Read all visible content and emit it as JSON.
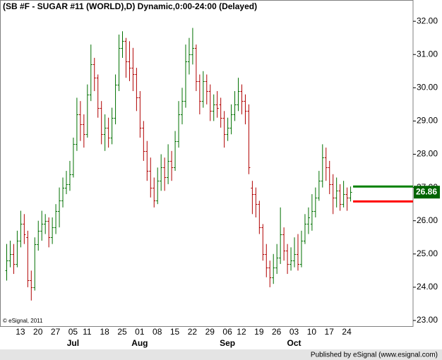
{
  "chart_data": {
    "type": "ohlc",
    "title": "(SB #F - SUGAR #11 (WORLD),D) Dynamic,0:00-24:00 (Delayed)",
    "copyright": "© eSignal, 2011",
    "footer": "Published by eSignal (www.esignal.com)",
    "categories": [
      null,
      null,
      null,
      null,
      "13",
      null,
      null,
      null,
      null,
      "20",
      null,
      null,
      null,
      null,
      "27",
      null,
      null,
      null,
      null,
      "05",
      null,
      null,
      null,
      "11",
      null,
      null,
      null,
      null,
      "18",
      null,
      null,
      null,
      null,
      "25",
      null,
      null,
      null,
      null,
      "01",
      null,
      null,
      null,
      null,
      "08",
      null,
      null,
      null,
      null,
      "15",
      null,
      null,
      null,
      null,
      "22",
      null,
      null,
      null,
      null,
      "29",
      null,
      null,
      null,
      null,
      "06",
      null,
      null,
      null,
      "12",
      null,
      null,
      null,
      null,
      "19",
      null,
      null,
      null,
      null,
      "26",
      null,
      null,
      null,
      null,
      "03",
      null,
      null,
      null,
      null,
      "10",
      null,
      null,
      null,
      null,
      "17",
      null,
      null,
      null,
      null,
      "24",
      null
    ],
    "months": [
      null,
      null,
      null,
      null,
      null,
      null,
      null,
      null,
      null,
      null,
      null,
      null,
      null,
      null,
      null,
      null,
      null,
      null,
      null,
      "Jul",
      null,
      null,
      null,
      null,
      null,
      null,
      null,
      null,
      null,
      null,
      null,
      null,
      null,
      null,
      null,
      null,
      null,
      null,
      "Aug",
      null,
      null,
      null,
      null,
      null,
      null,
      null,
      null,
      null,
      null,
      null,
      null,
      null,
      null,
      null,
      null,
      null,
      null,
      null,
      null,
      null,
      null,
      null,
      null,
      "Sep",
      null,
      null,
      null,
      null,
      null,
      null,
      null,
      null,
      null,
      null,
      null,
      null,
      null,
      null,
      null,
      null,
      null,
      null,
      "Oct",
      null,
      null,
      null,
      null,
      null,
      null,
      null,
      null,
      null,
      null,
      null,
      null,
      null,
      null,
      null,
      null
    ],
    "series": [
      {
        "up_color": "#007000",
        "down_color": "#b00000",
        "open": [
          24.5,
          24.8,
          25.0,
          24.7,
          25.4,
          25.9,
          25.5,
          24.2,
          24.0,
          25.3,
          25.7,
          25.9,
          26.0,
          25.5,
          25.8,
          26.3,
          26.6,
          27.0,
          27.1,
          27.4,
          28.3,
          29.2,
          28.9,
          28.6,
          29.8,
          30.7,
          30.3,
          29.4,
          28.6,
          28.8,
          28.5,
          29.1,
          30.1,
          31.2,
          31.4,
          30.8,
          30.6,
          30.4,
          29.7,
          28.8,
          28.1,
          27.5,
          27.0,
          26.6,
          27.2,
          27.6,
          27.3,
          27.8,
          27.6,
          28.4,
          29.2,
          29.6,
          30.8,
          31.0,
          31.2,
          30.2,
          29.6,
          30.2,
          29.9,
          29.3,
          29.5,
          29.5,
          29.1,
          28.6,
          28.8,
          29.2,
          29.5,
          29.9,
          29.6,
          29.3,
          27.0,
          26.8,
          26.5,
          25.8,
          25.0,
          24.6,
          24.3,
          24.6,
          24.9,
          25.6,
          25.1,
          24.7,
          24.8,
          25.0,
          24.7,
          25.4,
          25.9,
          25.9,
          26.3,
          26.7,
          27.2,
          27.9,
          27.6,
          27.1,
          26.7,
          26.9,
          26.5,
          26.8,
          26.7
        ],
        "high": [
          25.3,
          25.4,
          25.3,
          25.7,
          26.3,
          26.2,
          25.7,
          24.5,
          25.5,
          26.0,
          26.3,
          26.2,
          26.1,
          26.1,
          26.5,
          27.0,
          27.3,
          27.5,
          27.8,
          28.5,
          29.7,
          29.6,
          29.2,
          30.1,
          31.3,
          30.9,
          30.4,
          29.6,
          29.2,
          29.1,
          29.4,
          30.4,
          31.6,
          31.7,
          31.5,
          31.4,
          31.2,
          30.6,
          29.9,
          29.0,
          28.4,
          27.9,
          27.3,
          27.6,
          28.0,
          27.9,
          28.3,
          28.1,
          28.7,
          29.6,
          30.0,
          31.3,
          31.5,
          31.8,
          31.3,
          30.4,
          30.5,
          30.4,
          30.1,
          29.8,
          29.9,
          29.7,
          29.3,
          29.1,
          29.5,
          29.9,
          30.3,
          30.1,
          29.8,
          29.5,
          27.2,
          27.0,
          26.6,
          25.9,
          25.3,
          24.8,
          25.0,
          25.3,
          26.4,
          25.8,
          25.3,
          25.2,
          25.5,
          25.6,
          25.7,
          26.2,
          26.4,
          26.8,
          27.0,
          27.5,
          28.3,
          28.2,
          27.8,
          27.4,
          27.3,
          27.1,
          27.2,
          27.0,
          27.03
        ],
        "low": [
          24.2,
          24.6,
          24.4,
          24.6,
          25.2,
          25.3,
          24.0,
          23.6,
          23.9,
          25.1,
          25.4,
          25.6,
          25.2,
          25.3,
          25.6,
          25.8,
          26.4,
          26.8,
          26.9,
          27.3,
          28.1,
          28.4,
          28.2,
          28.5,
          29.6,
          29.9,
          29.1,
          28.3,
          28.1,
          28.2,
          28.3,
          28.9,
          29.9,
          30.9,
          30.3,
          30.2,
          29.9,
          29.3,
          28.5,
          27.8,
          27.2,
          26.7,
          26.4,
          26.5,
          26.9,
          26.9,
          27.1,
          27.2,
          27.5,
          28.2,
          28.9,
          29.4,
          30.4,
          30.7,
          29.9,
          29.2,
          29.4,
          29.5,
          29.0,
          29.0,
          29.1,
          28.8,
          28.2,
          28.4,
          28.6,
          29.0,
          29.3,
          29.2,
          28.9,
          27.4,
          26.2,
          26.1,
          25.6,
          24.8,
          24.3,
          24.0,
          24.1,
          24.4,
          24.7,
          24.8,
          24.4,
          24.5,
          24.6,
          24.5,
          24.6,
          25.3,
          25.6,
          25.7,
          26.1,
          26.6,
          27.0,
          27.2,
          26.8,
          26.2,
          26.4,
          26.3,
          26.4,
          26.3,
          26.58
        ],
        "close": [
          24.8,
          25.0,
          24.7,
          25.4,
          25.9,
          25.6,
          24.2,
          24.0,
          25.3,
          25.7,
          25.9,
          26.0,
          25.5,
          25.8,
          26.3,
          26.6,
          27.0,
          27.1,
          27.4,
          28.3,
          29.2,
          28.9,
          28.6,
          29.8,
          30.7,
          30.3,
          29.4,
          28.6,
          28.8,
          28.5,
          29.1,
          30.1,
          31.2,
          31.4,
          30.8,
          30.6,
          30.4,
          29.7,
          28.8,
          28.1,
          27.5,
          27.0,
          26.6,
          27.2,
          27.6,
          27.3,
          27.8,
          27.6,
          28.4,
          29.2,
          29.6,
          30.8,
          31.0,
          31.2,
          30.2,
          29.6,
          30.2,
          29.9,
          29.3,
          29.5,
          29.4,
          29.1,
          28.6,
          28.8,
          29.2,
          29.5,
          29.9,
          29.6,
          29.3,
          27.6,
          26.8,
          26.5,
          25.8,
          25.0,
          24.6,
          24.3,
          24.6,
          24.9,
          25.6,
          25.1,
          24.7,
          24.8,
          25.0,
          24.7,
          25.4,
          25.9,
          26.1,
          26.3,
          26.7,
          27.2,
          27.9,
          27.6,
          27.1,
          26.7,
          26.9,
          26.5,
          26.8,
          26.7,
          26.86
        ]
      }
    ],
    "ylim": [
      22.83,
      32.64
    ],
    "yticks": [
      {
        "value": 23,
        "label": "23.00"
      },
      {
        "value": 24,
        "label": "24.00"
      },
      {
        "value": 25,
        "label": "25.00"
      },
      {
        "value": 26,
        "label": "26.00"
      },
      {
        "value": 27,
        "label": "27.00"
      },
      {
        "value": 28,
        "label": "28.00"
      },
      {
        "value": 29,
        "label": "29.00"
      },
      {
        "value": 30,
        "label": "30.00"
      },
      {
        "value": 31,
        "label": "31.00"
      },
      {
        "value": 32,
        "label": "32.00"
      }
    ],
    "levels": [
      {
        "value": 27.03,
        "color": "#008000"
      },
      {
        "value": 26.58,
        "color": "#ff0000"
      }
    ],
    "last_price": 26.86,
    "last_price_color": "#006400",
    "grid": false
  }
}
